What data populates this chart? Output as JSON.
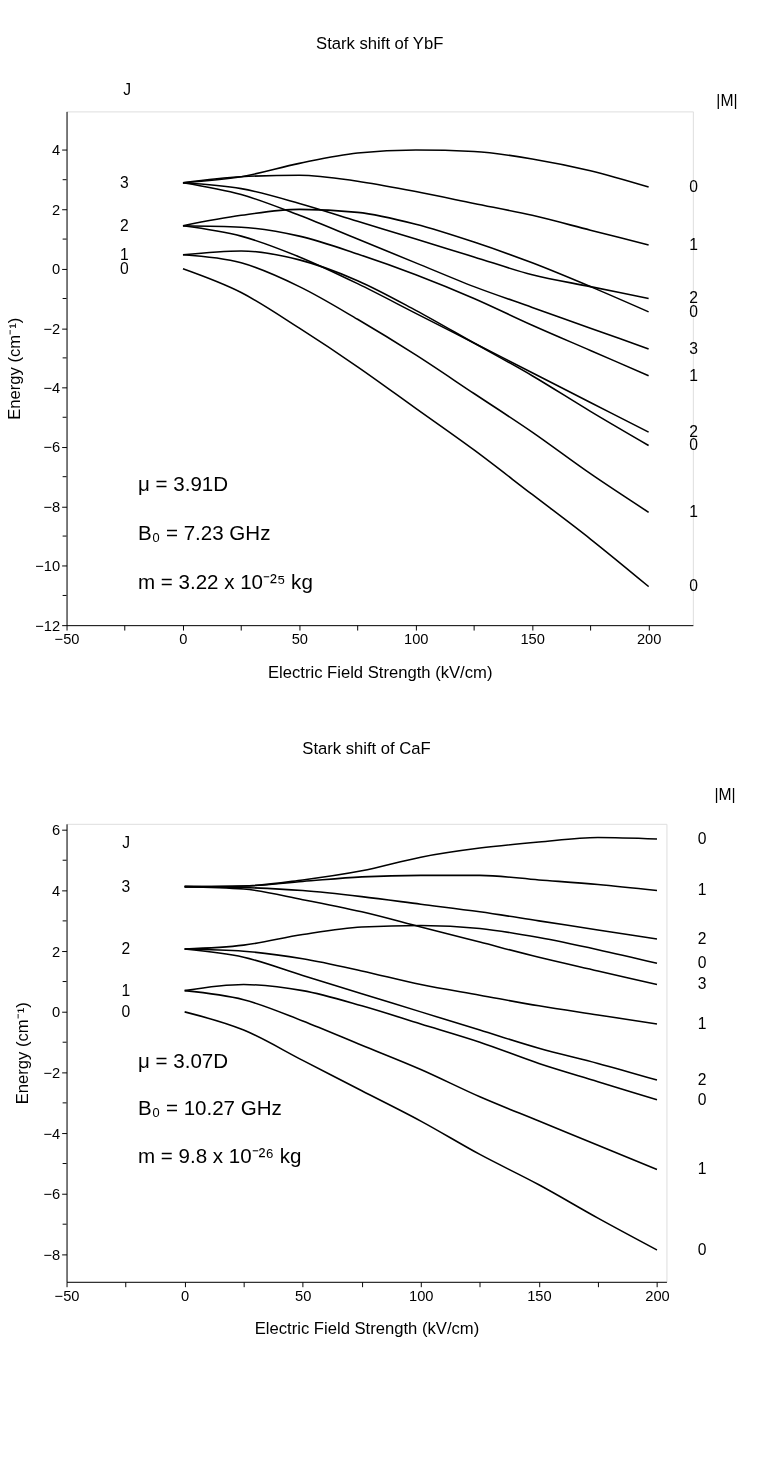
{
  "chart_data": [
    {
      "type": "line",
      "title": "Stark shift of YbF",
      "xlabel": "Electric Field Strength (kV/cm)",
      "ylabel": "Energy (cm⁻¹)",
      "x": [
        0,
        25,
        50,
        75,
        100,
        125,
        150,
        175,
        200
      ],
      "xlim": [
        -50,
        219
      ],
      "xticks": [
        -50,
        {
          "value": -25,
          "label": null
        },
        0,
        {
          "value": 25,
          "label": null
        },
        50,
        {
          "value": 75,
          "label": null
        },
        100,
        {
          "value": 125,
          "label": null
        },
        150,
        {
          "value": 175,
          "label": null
        },
        200
      ],
      "ylim": [
        -12,
        5.3
      ],
      "yticks": [
        -12,
        {
          "value": -11,
          "label": null
        },
        -10,
        {
          "value": -9,
          "label": null
        },
        -8,
        {
          "value": -7,
          "label": null
        },
        -6,
        {
          "value": -5,
          "label": null
        },
        -4,
        {
          "value": -3,
          "label": null
        },
        -2,
        {
          "value": -1,
          "label": null
        },
        0,
        {
          "value": 1,
          "label": null
        },
        2,
        {
          "value": 3,
          "label": null
        },
        4
      ],
      "grid": false,
      "legend": false,
      "marker": "none",
      "line_style": "solid",
      "series": [
        {
          "color": "#000000",
          "values": [
            2.9,
            3.1,
            3.55,
            3.9,
            4.0,
            3.95,
            3.7,
            3.3,
            2.75
          ]
        },
        {
          "color": "#000000",
          "values": [
            2.9,
            3.1,
            3.15,
            2.95,
            2.6,
            2.2,
            1.8,
            1.3,
            0.8
          ]
        },
        {
          "color": "#000000",
          "values": [
            2.9,
            2.7,
            2.2,
            1.6,
            1.0,
            0.4,
            -0.2,
            -0.6,
            -1.0
          ]
        },
        {
          "color": "#000000",
          "values": [
            1.45,
            1.8,
            2.0,
            1.9,
            1.5,
            0.9,
            0.2,
            -0.6,
            -1.45
          ]
        },
        {
          "color": "#000000",
          "values": [
            2.9,
            2.5,
            1.8,
            1.0,
            0.2,
            -0.6,
            -1.3,
            -2.0,
            -2.7
          ]
        },
        {
          "color": "#000000",
          "values": [
            1.45,
            1.4,
            1.1,
            0.5,
            -0.2,
            -1.0,
            -1.9,
            -2.75,
            -3.6
          ]
        },
        {
          "color": "#000000",
          "values": [
            1.45,
            1.1,
            0.4,
            -0.5,
            -1.5,
            -2.5,
            -3.5,
            -4.5,
            -5.5
          ]
        },
        {
          "color": "#000000",
          "values": [
            0.47,
            0.6,
            0.3,
            -0.4,
            -1.4,
            -2.5,
            -3.6,
            -4.8,
            -5.95
          ]
        },
        {
          "color": "#000000",
          "values": [
            0.47,
            0.2,
            -0.6,
            -1.7,
            -2.9,
            -4.2,
            -5.5,
            -6.9,
            -8.2
          ]
        },
        {
          "color": "#000000",
          "values": [
            0,
            -0.8,
            -2.0,
            -3.3,
            -4.7,
            -6.1,
            -7.6,
            -9.1,
            -10.7
          ]
        }
      ],
      "annotations": [
        "J",
        "|M|",
        "μ = 3.91D",
        "B₀ = 7.23 GHz",
        "m = 3.22 x 10⁻²⁵ kg",
        "3",
        "2",
        "1",
        "0",
        "0",
        "1",
        "2",
        "0",
        "3",
        "1",
        "2",
        "0",
        "1",
        "0"
      ]
    },
    {
      "type": "line",
      "title": "Stark shift of CaF",
      "xlabel": "Electric Field Strength (kV/cm)",
      "ylabel": "Energy (cm⁻¹)",
      "x": [
        0,
        25,
        50,
        75,
        100,
        125,
        150,
        175,
        200
      ],
      "xlim": [
        -50,
        204
      ],
      "xticks": [
        -50,
        {
          "value": -25,
          "label": null
        },
        0,
        {
          "value": 25,
          "label": null
        },
        50,
        {
          "value": 75,
          "label": null
        },
        100,
        {
          "value": 125,
          "label": null
        },
        150,
        {
          "value": 175,
          "label": null
        },
        200
      ],
      "ylim": [
        -8.9,
        6.2
      ],
      "yticks": [
        -8,
        {
          "value": -7,
          "label": null
        },
        -6,
        {
          "value": -5,
          "label": null
        },
        -4,
        {
          "value": -3,
          "label": null
        },
        -2,
        {
          "value": -1,
          "label": null
        },
        0,
        {
          "value": 1,
          "label": null
        },
        2,
        {
          "value": 3,
          "label": null
        },
        4,
        {
          "value": 5,
          "label": null
        },
        6
      ],
      "grid": false,
      "legend": false,
      "marker": "none",
      "line_style": "solid",
      "series": [
        {
          "color": "#000000",
          "values": [
            4.13,
            4.15,
            4.35,
            4.65,
            5.1,
            5.4,
            5.6,
            5.75,
            5.7
          ]
        },
        {
          "color": "#000000",
          "values": [
            4.13,
            4.15,
            4.3,
            4.45,
            4.5,
            4.5,
            4.35,
            4.2,
            4.0
          ]
        },
        {
          "color": "#000000",
          "values": [
            4.13,
            4.1,
            4.0,
            3.8,
            3.55,
            3.3,
            3.0,
            2.7,
            2.4
          ]
        },
        {
          "color": "#000000",
          "values": [
            2.07,
            2.2,
            2.55,
            2.8,
            2.85,
            2.75,
            2.45,
            2.05,
            1.6
          ]
        },
        {
          "color": "#000000",
          "values": [
            4.13,
            4.05,
            3.7,
            3.3,
            2.8,
            2.3,
            1.8,
            1.35,
            0.9
          ]
        },
        {
          "color": "#000000",
          "values": [
            2.07,
            2.0,
            1.75,
            1.35,
            0.9,
            0.55,
            0.2,
            -0.1,
            -0.4
          ]
        },
        {
          "color": "#000000",
          "values": [
            2.07,
            1.8,
            1.2,
            0.6,
            0.0,
            -0.6,
            -1.2,
            -1.7,
            -2.25
          ]
        },
        {
          "color": "#000000",
          "values": [
            0.7,
            0.9,
            0.7,
            0.2,
            -0.4,
            -1.0,
            -1.7,
            -2.3,
            -2.9
          ]
        },
        {
          "color": "#000000",
          "values": [
            0.7,
            0.4,
            -0.3,
            -1.1,
            -1.9,
            -2.8,
            -3.6,
            -4.4,
            -5.2
          ]
        },
        {
          "color": "#000000",
          "values": [
            0,
            -0.6,
            -1.6,
            -2.6,
            -3.6,
            -4.7,
            -5.7,
            -6.8,
            -7.85
          ]
        }
      ],
      "annotations": [
        "J",
        "|M|",
        "μ = 3.07D",
        "B₀ = 10.27 GHz",
        "m = 9.8 x 10⁻²⁶ kg",
        "3",
        "2",
        "1",
        "0",
        "0",
        "1",
        "2",
        "0",
        "3",
        "1",
        "2",
        "0",
        "1",
        "0"
      ]
    }
  ]
}
